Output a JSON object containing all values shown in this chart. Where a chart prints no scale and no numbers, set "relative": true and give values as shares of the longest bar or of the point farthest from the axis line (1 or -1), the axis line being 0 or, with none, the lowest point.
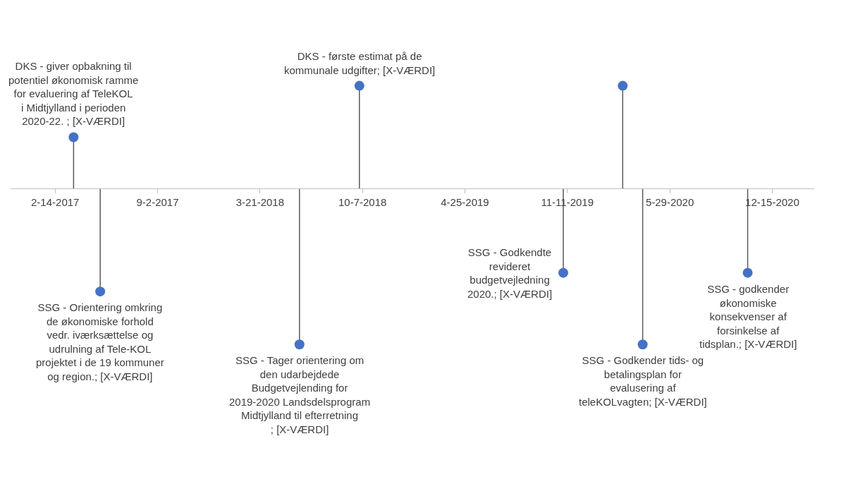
{
  "chart_data": {
    "type": "lollipop",
    "relative": true,
    "color": "#4472c4",
    "marker": "circle",
    "x": [
      "2017-03-22",
      "2017-05-13",
      "2018-06-06",
      "2018-10-01",
      "2019-11-03",
      "2020-02-27",
      "2020-04-06",
      "2020-10-28"
    ],
    "values": [
      0.33,
      -0.66,
      -1,
      0.66,
      -0.54,
      0.66,
      -1,
      -0.54
    ],
    "xlim": [
      "2016-11-19",
      "2021-03-07"
    ],
    "xticks": [
      {
        "value": "2017-02-14",
        "label": "2-14-2017"
      },
      {
        "value": "2017-09-02",
        "label": "9-2-2017"
      },
      {
        "value": "2018-03-21",
        "label": "3-21-2018"
      },
      {
        "value": "2018-10-07",
        "label": "10-7-2018"
      },
      {
        "value": "2019-04-25",
        "label": "4-25-2019"
      },
      {
        "value": "2019-11-11",
        "label": "11-11-2019"
      },
      {
        "value": "2020-05-29",
        "label": "5-29-2020"
      },
      {
        "value": "2020-12-15",
        "label": "12-15-2020"
      }
    ],
    "annotations": [
      {
        "text": "DKS - giver opbakning til potentiel økonomisk ramme for evaluering af TeleKOL i Midtjylland i perioden 2020-22. ; [X-VÆRDI]",
        "x": "2017-03-22",
        "y": 0.33
      },
      {
        "text": "SSG - Orientering omkring de økonomiske forhold vedr. iværksættelse og udrulning af Tele-KOL projektet i de 19 kommuner og region.; [X-VÆRDI]",
        "x": "2017-05-13",
        "y": -0.66
      },
      {
        "text": "SSG - Tager orientering om den udarbejdede Budgetvejlending for 2019-2020 Landsdelsprogram Midtjylland til efterretning ; [X-VÆRDI]",
        "x": "2018-06-06",
        "y": -1
      },
      {
        "text": "DKS - første estimat på de kommunale udgifter; [X-VÆRDI]",
        "x": "2018-10-01",
        "y": 0.66
      },
      {
        "text": "SSG - Godkendte revideret budgetvejledning 2020.; [X-VÆRDI]",
        "x": "2019-11-03",
        "y": -0.54
      },
      {
        "text": "SSG - Godkender tids- og betalingsplan for evalusering af teleKOLvagten; [X-VÆRDI]",
        "x": "2020-04-06",
        "y": -1
      },
      {
        "text": "SSG - godkender økonomiske konsekvenser af forsinkelse af tidsplan.; [X-VÆRDI]",
        "x": "2020-10-28",
        "y": -0.54
      }
    ]
  }
}
